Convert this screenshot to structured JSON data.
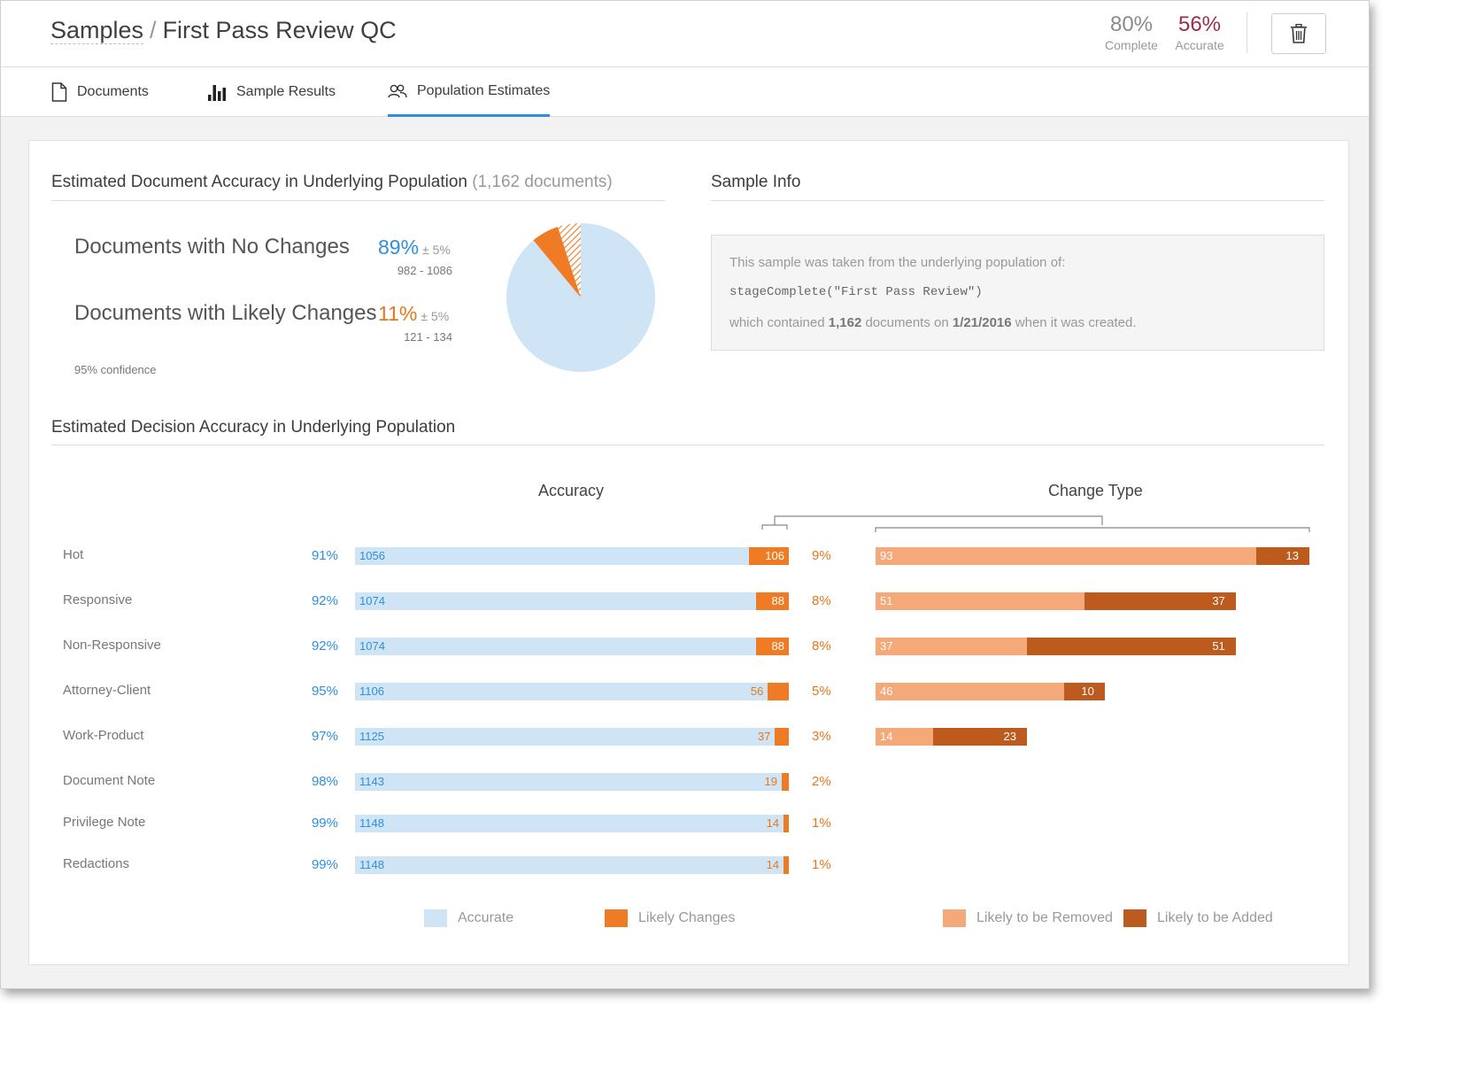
{
  "breadcrumb": {
    "root": "Samples",
    "separator": "/",
    "current": "First Pass Review QC"
  },
  "header_stats": [
    {
      "value": "80%",
      "label": "Complete",
      "color": "#8a8a8a"
    },
    {
      "value": "56%",
      "label": "Accurate",
      "color": "#9a2d4e"
    }
  ],
  "toolbar": {
    "delete_icon": "trash-icon"
  },
  "tabs": [
    {
      "label": "Documents",
      "icon": "document-icon"
    },
    {
      "label": "Sample Results",
      "icon": "bar-chart-icon"
    },
    {
      "label": "Population Estimates",
      "icon": "people-icon",
      "active": true
    }
  ],
  "doc_accuracy": {
    "title": "Estimated Document Accuracy in Underlying Population",
    "count_note": "(1,162 documents)",
    "rows": [
      {
        "label": "Documents with No Changes",
        "pct": "89%",
        "margin": "± 5%",
        "range": "982 - 1086",
        "color": "#2d8fe0"
      },
      {
        "label": "Documents with Likely Changes",
        "pct": "11%",
        "margin": "± 5%",
        "range": "121 - 134",
        "color": "#e8771c"
      }
    ],
    "confidence": "95% confidence"
  },
  "sample_info": {
    "title": "Sample Info",
    "line1": "This sample was taken from the underlying population of:",
    "query": "stageComplete(\"First Pass Review\")",
    "line3_pre": "which contained",
    "line3_count": "1,162",
    "line3_mid": "documents on",
    "line3_date": "1/21/2016",
    "line3_post": "when it was created."
  },
  "decision_accuracy": {
    "title": "Estimated Decision Accuracy in Underlying Population",
    "accuracy_heading": "Accuracy",
    "change_type_heading": "Change Type"
  },
  "chart_data": [
    {
      "type": "pie",
      "slices": [
        {
          "name": "Documents with No Changes",
          "value": 89,
          "color": "#cfe5f5"
        },
        {
          "name": "Documents with Likely Changes",
          "value": 11,
          "color": "#f07b25",
          "margin": 5
        }
      ]
    },
    {
      "type": "bar",
      "stacked": true,
      "orientation": "horizontal",
      "categories": [
        "Hot",
        "Responsive",
        "Non-Responsive",
        "Attorney-Client",
        "Work-Product",
        "Document Note",
        "Privilege Note",
        "Redactions"
      ],
      "series": [
        {
          "name": "Accurate",
          "values": [
            1056,
            1074,
            1074,
            1106,
            1125,
            1143,
            1148,
            1148
          ],
          "color": "#cfe5f5"
        },
        {
          "name": "Likely Changes",
          "values": [
            106,
            88,
            88,
            56,
            37,
            19,
            14,
            14
          ],
          "color": "#f07b25"
        }
      ],
      "accurate_pct": [
        "91%",
        "92%",
        "92%",
        "95%",
        "97%",
        "98%",
        "99%",
        "99%"
      ],
      "change_pct": [
        "9%",
        "8%",
        "8%",
        "5%",
        "3%",
        "2%",
        "1%",
        "1%"
      ]
    },
    {
      "type": "bar",
      "stacked": true,
      "orientation": "horizontal",
      "categories": [
        "Hot",
        "Responsive",
        "Non-Responsive",
        "Attorney-Client",
        "Work-Product"
      ],
      "series": [
        {
          "name": "Likely to be Removed",
          "values": [
            93,
            51,
            37,
            46,
            14
          ],
          "color": "#f5a878"
        },
        {
          "name": "Likely to be Added",
          "values": [
            13,
            37,
            51,
            10,
            23
          ],
          "color": "#bd5b1e"
        }
      ]
    }
  ],
  "legend": [
    {
      "label": "Accurate",
      "color": "#cfe5f5"
    },
    {
      "label": "Likely Changes",
      "color": "#f07b25"
    },
    {
      "label": "Likely to be Removed",
      "color": "#f5a878"
    },
    {
      "label": "Likely to be Added",
      "color": "#bd5b1e"
    }
  ]
}
